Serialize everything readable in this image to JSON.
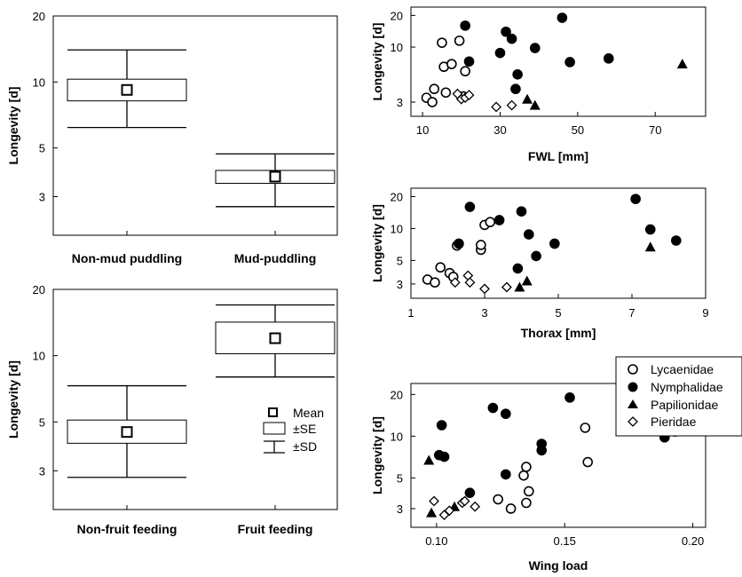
{
  "chart_data": [
    {
      "type": "box",
      "id": "puddling",
      "ylabel": "Longevity [d]",
      "yscale": "log",
      "ylim": [
        2,
        20
      ],
      "yticks": [
        3,
        5,
        10,
        20
      ],
      "categories": [
        "Non-mud puddling",
        "Mud-puddling"
      ],
      "mean": [
        9.2,
        3.7
      ],
      "se": [
        [
          8.2,
          10.3
        ],
        [
          3.45,
          3.95
        ]
      ],
      "sd": [
        [
          6.2,
          14.0
        ],
        [
          2.7,
          4.7
        ]
      ]
    },
    {
      "type": "box",
      "id": "fruit",
      "ylabel": "Longevity [d]",
      "yscale": "log",
      "ylim": [
        2,
        20
      ],
      "yticks": [
        3,
        5,
        10,
        20
      ],
      "categories": [
        "Non-fruit feeding",
        "Fruit feeding"
      ],
      "mean": [
        4.5,
        12.0
      ],
      "se": [
        [
          4.0,
          5.1
        ],
        [
          10.2,
          14.2
        ]
      ],
      "sd": [
        [
          2.8,
          7.3
        ],
        [
          8.0,
          17.0
        ]
      ],
      "legend": {
        "mean": "Mean",
        "se": "±SE",
        "sd": "±SD"
      }
    },
    {
      "type": "scatter",
      "id": "fwl",
      "xlabel": "FWL [mm]",
      "ylabel": "Longevity [d]",
      "yscale": "log",
      "xlim": [
        7,
        83
      ],
      "ylim": [
        2.2,
        24
      ],
      "xticks": [
        10,
        30,
        50,
        70
      ],
      "yticks": [
        3,
        10,
        20
      ],
      "series": [
        {
          "name": "Lycaenidae",
          "marker": "open-circle",
          "points": [
            [
              11,
              3.3
            ],
            [
              12.5,
              3.0
            ],
            [
              13,
              4.0
            ],
            [
              15,
              11
            ],
            [
              15.5,
              6.5
            ],
            [
              16,
              3.7
            ],
            [
              17.5,
              6.9
            ],
            [
              19.5,
              11.5
            ],
            [
              20.5,
              3.4
            ],
            [
              21,
              5.9
            ]
          ]
        },
        {
          "name": "Nymphalidae",
          "marker": "filled-circle",
          "points": [
            [
              21,
              16
            ],
            [
              22,
              7.3
            ],
            [
              30,
              8.8
            ],
            [
              31.5,
              14
            ],
            [
              33,
              12
            ],
            [
              34,
              4.0
            ],
            [
              34.5,
              5.5
            ],
            [
              39,
              9.8
            ],
            [
              46,
              19
            ],
            [
              48,
              7.2
            ],
            [
              58,
              7.8
            ]
          ]
        },
        {
          "name": "Papilionidae",
          "marker": "filled-triangle",
          "points": [
            [
              37,
              3.2
            ],
            [
              39,
              2.8
            ],
            [
              77,
              6.9
            ]
          ]
        },
        {
          "name": "Pieridae",
          "marker": "open-diamond",
          "points": [
            [
              19,
              3.6
            ],
            [
              20,
              3.2
            ],
            [
              21,
              3.3
            ],
            [
              22,
              3.5
            ],
            [
              29,
              2.7
            ],
            [
              33,
              2.8
            ]
          ]
        }
      ]
    },
    {
      "type": "scatter",
      "id": "thorax",
      "xlabel": "Thorax [mm]",
      "ylabel": "Longevity [d]",
      "yscale": "log",
      "xlim": [
        1,
        9
      ],
      "ylim": [
        2.2,
        24
      ],
      "xticks": [
        1,
        3,
        5,
        7,
        9
      ],
      "yticks": [
        3,
        5,
        10,
        20
      ],
      "series": [
        {
          "name": "Lycaenidae",
          "marker": "open-circle",
          "points": [
            [
              1.45,
              3.3
            ],
            [
              1.65,
              3.1
            ],
            [
              1.8,
              4.3
            ],
            [
              2.05,
              3.8
            ],
            [
              2.15,
              3.5
            ],
            [
              2.25,
              6.9
            ],
            [
              2.9,
              6.3
            ],
            [
              2.9,
              7.0
            ],
            [
              3.0,
              10.8
            ],
            [
              3.15,
              11.5
            ]
          ]
        },
        {
          "name": "Nymphalidae",
          "marker": "filled-circle",
          "points": [
            [
              2.3,
              7.2
            ],
            [
              2.6,
              16
            ],
            [
              3.4,
              12
            ],
            [
              3.9,
              4.2
            ],
            [
              4.0,
              14.5
            ],
            [
              4.2,
              8.8
            ],
            [
              4.4,
              5.5
            ],
            [
              4.9,
              7.2
            ],
            [
              7.1,
              19
            ],
            [
              7.5,
              9.8
            ],
            [
              8.2,
              7.7
            ]
          ]
        },
        {
          "name": "Papilionidae",
          "marker": "filled-triangle",
          "points": [
            [
              3.95,
              2.8
            ],
            [
              4.15,
              3.2
            ],
            [
              7.5,
              6.7
            ]
          ]
        },
        {
          "name": "Pieridae",
          "marker": "open-diamond",
          "points": [
            [
              2.2,
              3.1
            ],
            [
              2.55,
              3.6
            ],
            [
              2.6,
              3.1
            ],
            [
              3.0,
              2.7
            ],
            [
              3.6,
              2.8
            ]
          ]
        }
      ]
    },
    {
      "type": "scatter",
      "id": "wingload",
      "xlabel": "Wing load",
      "ylabel": "Longevity [d]",
      "yscale": "log",
      "xlim": [
        0.09,
        0.205
      ],
      "ylim": [
        2.2,
        24
      ],
      "xticks": [
        0.1,
        0.15,
        0.2
      ],
      "xticklabels": [
        "0.10",
        "0.15",
        "0.20"
      ],
      "yticks": [
        3,
        5,
        10,
        20
      ],
      "legend": {
        "position": "top-right-outside"
      },
      "series": [
        {
          "name": "Lycaenidae",
          "marker": "open-circle",
          "points": [
            [
              0.124,
              3.5
            ],
            [
              0.129,
              3.0
            ],
            [
              0.134,
              5.2
            ],
            [
              0.135,
              6.0
            ],
            [
              0.135,
              3.3
            ],
            [
              0.136,
              4.0
            ],
            [
              0.158,
              11.5
            ],
            [
              0.159,
              6.5
            ],
            [
              0.193,
              10.8
            ]
          ]
        },
        {
          "name": "Nymphalidae",
          "marker": "filled-circle",
          "points": [
            [
              0.101,
              7.3
            ],
            [
              0.102,
              12
            ],
            [
              0.103,
              7.1
            ],
            [
              0.113,
              3.9
            ],
            [
              0.122,
              16
            ],
            [
              0.127,
              14.5
            ],
            [
              0.127,
              5.3
            ],
            [
              0.141,
              8.8
            ],
            [
              0.141,
              7.9
            ],
            [
              0.152,
              19
            ],
            [
              0.189,
              9.8
            ]
          ]
        },
        {
          "name": "Papilionidae",
          "marker": "filled-triangle",
          "points": [
            [
              0.097,
              6.7
            ],
            [
              0.098,
              2.8
            ],
            [
              0.107,
              3.1
            ]
          ]
        },
        {
          "name": "Pieridae",
          "marker": "open-diamond",
          "points": [
            [
              0.099,
              3.4
            ],
            [
              0.103,
              2.7
            ],
            [
              0.105,
              2.9
            ],
            [
              0.11,
              3.3
            ],
            [
              0.111,
              3.4
            ],
            [
              0.115,
              3.1
            ]
          ]
        }
      ]
    }
  ]
}
